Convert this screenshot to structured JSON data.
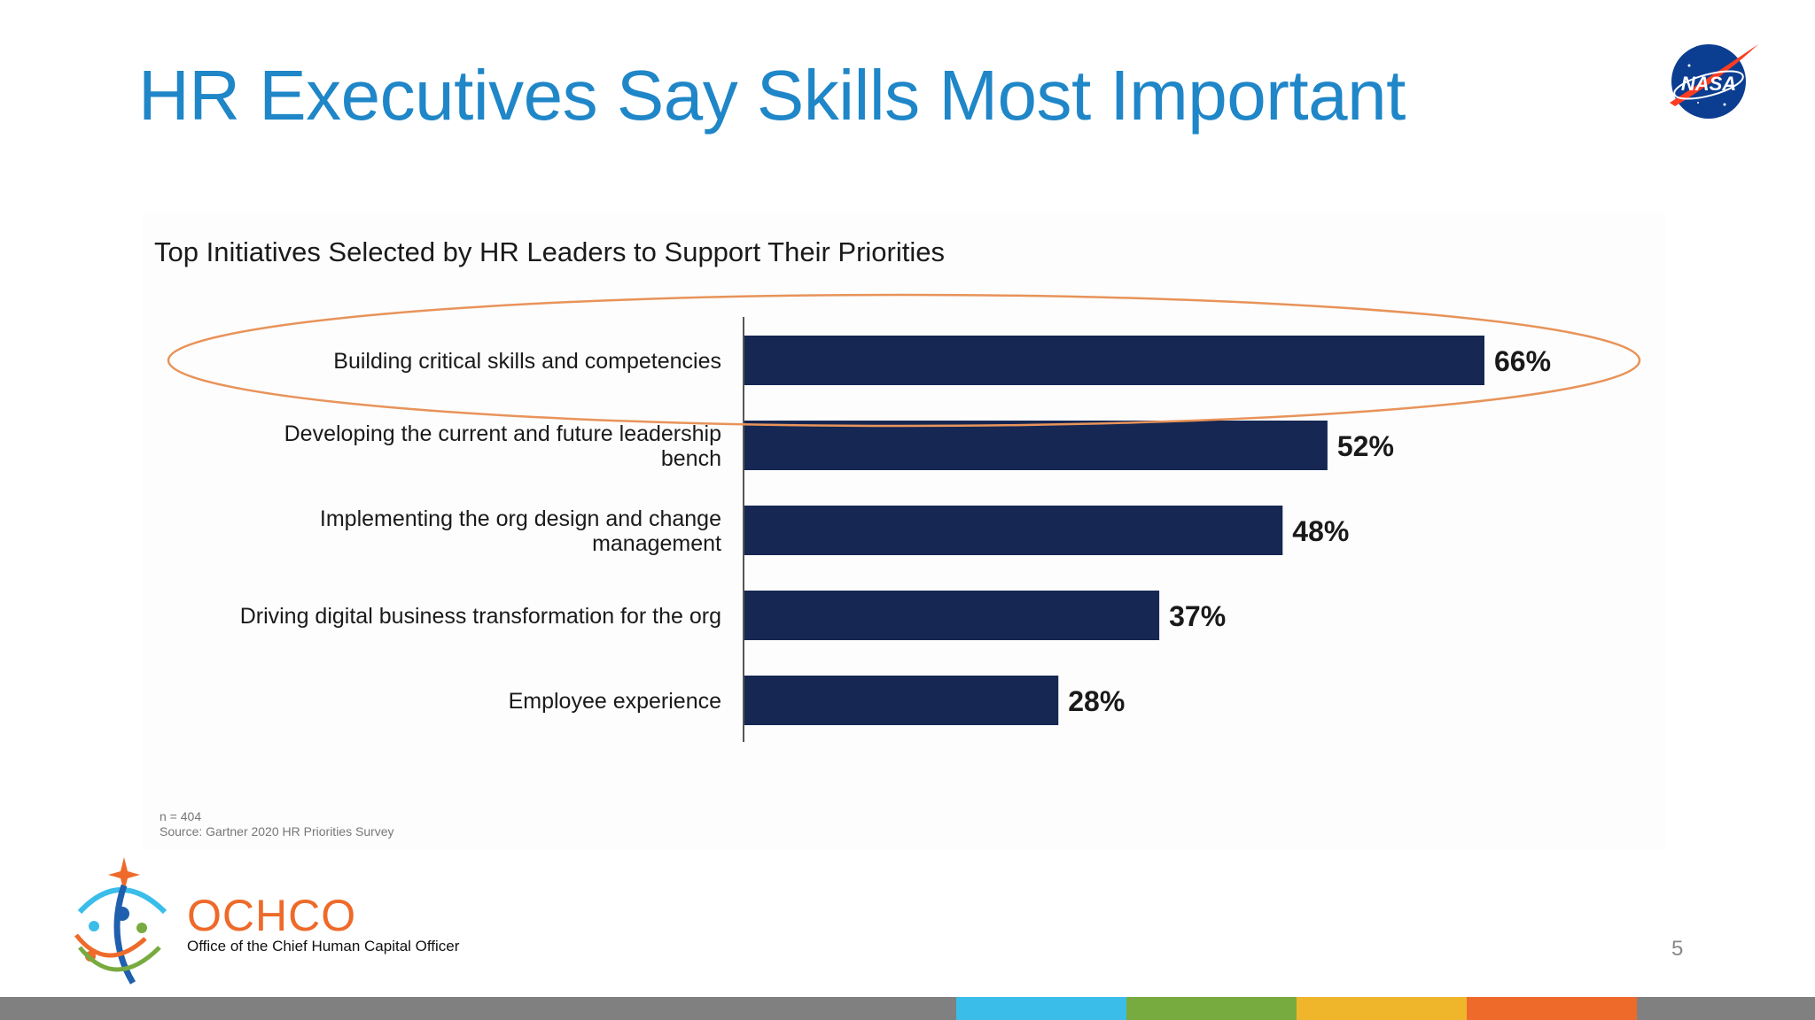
{
  "slide": {
    "title": "HR Executives Say Skills Most Important",
    "page_number": "5"
  },
  "logos": {
    "nasa": "NASA",
    "ochco_name": "OCHCO",
    "ochco_subtitle": "Office of the Chief Human Capital Officer"
  },
  "chart_data": {
    "type": "bar",
    "orientation": "horizontal",
    "title": "Top Initiatives Selected by HR Leaders to Support Their Priorities",
    "categories": [
      [
        "Building  critical skills and competencies"
      ],
      [
        "Developing the current and future leadership",
        "bench"
      ],
      [
        "Implementing the org design and change",
        "management"
      ],
      [
        "Driving digital business transformation for the org"
      ],
      [
        "Employee experience"
      ]
    ],
    "values": [
      66,
      52,
      48,
      37,
      28
    ],
    "value_labels": [
      "66%",
      "52%",
      "48%",
      "37%",
      "28%"
    ],
    "unit": "%",
    "xlim": [
      0,
      100
    ],
    "bar_color": "#152752",
    "highlight_color": "#e8935a",
    "highlighted_index": 0,
    "grid": false,
    "legend": "none"
  },
  "source": {
    "n": "n = 404",
    "text": "Source: Gartner 2020 HR Priorities Survey"
  },
  "footer_colors": [
    "#808080",
    "#3bbdea",
    "#78ab3f",
    "#f0b62b",
    "#ee6a2a",
    "#808080"
  ]
}
